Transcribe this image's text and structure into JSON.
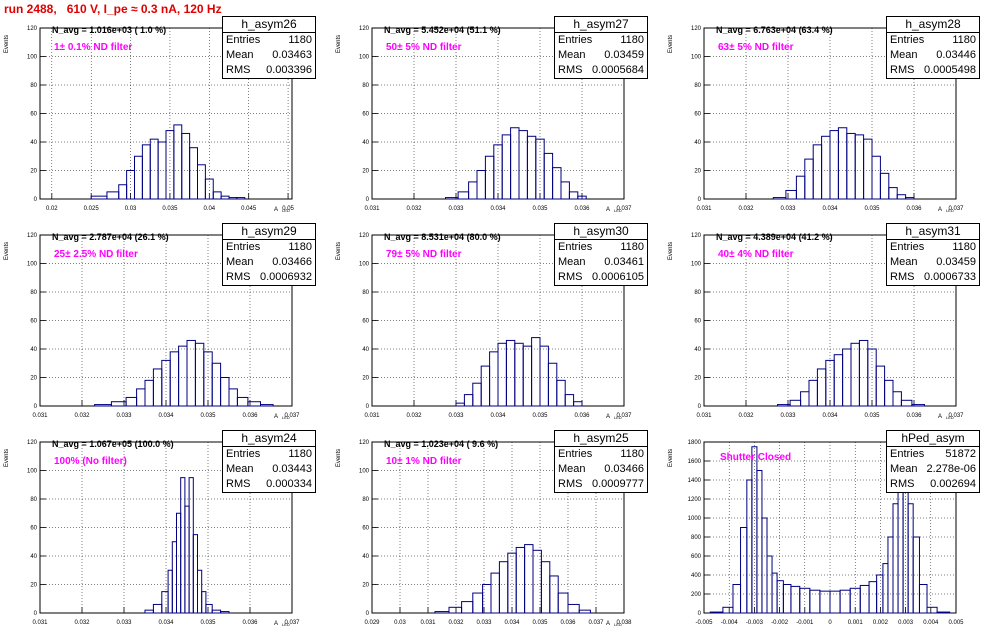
{
  "title": "run 2488,   610 V, I_pe ≈ 0.3 nA, 120 Hz",
  "ylabel": "Events",
  "xlabel": "A",
  "xlabel_sub": "LED",
  "stat_labels": {
    "entries": "Entries",
    "mean": "Mean",
    "rms": "RMS"
  },
  "colors": {
    "hist": "#000080",
    "title": "#e00000",
    "filter": "#ff00ff"
  },
  "panels": [
    {
      "name": "h_asym26",
      "entries": "1180",
      "mean": "0.03463",
      "rms": "0.003396",
      "navg": "N_avg = 1.016e+03 ( 1.0 %)",
      "filter": "1± 0.1% ND filter"
    },
    {
      "name": "h_asym27",
      "entries": "1180",
      "mean": "0.03459",
      "rms": "0.0005684",
      "navg": "N_avg = 5.452e+04 (51.1 %)",
      "filter": "50± 5% ND filter"
    },
    {
      "name": "h_asym28",
      "entries": "1180",
      "mean": "0.03446",
      "rms": "0.0005498",
      "navg": "N_avg = 6.763e+04 (63.4 %)",
      "filter": "63± 5% ND filter"
    },
    {
      "name": "h_asym29",
      "entries": "1180",
      "mean": "0.03466",
      "rms": "0.0006932",
      "navg": "N_avg = 2.787e+04 (26.1 %)",
      "filter": "25± 2.5% ND filter"
    },
    {
      "name": "h_asym30",
      "entries": "1180",
      "mean": "0.03461",
      "rms": "0.0006105",
      "navg": "N_avg = 8.531e+04 (80.0 %)",
      "filter": "79± 5% ND filter"
    },
    {
      "name": "h_asym31",
      "entries": "1180",
      "mean": "0.03459",
      "rms": "0.0006733",
      "navg": "N_avg = 4.389e+04 (41.2 %)",
      "filter": "40± 4% ND filter"
    },
    {
      "name": "h_asym24",
      "entries": "1180",
      "mean": "0.03443",
      "rms": "0.000334",
      "navg": "N_avg = 1.067e+05 (100.0 %)",
      "filter": "100% (No filter)"
    },
    {
      "name": "h_asym25",
      "entries": "1180",
      "mean": "0.03466",
      "rms": "0.0009777",
      "navg": "N_avg = 1.023e+04 ( 9.6 %)",
      "filter": "10± 1% ND filter"
    },
    {
      "name": "hPed_asym",
      "entries": "51872",
      "mean": "2.278e-06",
      "rms": "0.002694",
      "navg": "",
      "filter": "Shutter Closed"
    }
  ],
  "chart_data": [
    {
      "type": "bar",
      "name": "h_asym26",
      "xlim": [
        0.0185,
        0.0505
      ],
      "ylim": [
        0,
        120
      ],
      "xticks": [
        0.02,
        0.025,
        0.03,
        0.035,
        0.04,
        0.045,
        0.05
      ],
      "yticks": [
        0,
        20,
        40,
        60,
        80,
        100,
        120
      ],
      "xlabel": "A LED",
      "ylabel": "Events",
      "x": [
        0.026,
        0.028,
        0.029,
        0.03,
        0.031,
        0.032,
        0.033,
        0.034,
        0.035,
        0.036,
        0.037,
        0.038,
        0.039,
        0.04,
        0.041,
        0.042,
        0.043,
        0.044
      ],
      "values": [
        2,
        5,
        10,
        20,
        30,
        38,
        42,
        40,
        48,
        52,
        46,
        36,
        24,
        14,
        5,
        2,
        1,
        1
      ]
    },
    {
      "type": "bar",
      "name": "h_asym27",
      "xlim": [
        0.031,
        0.037
      ],
      "ylim": [
        0,
        120
      ],
      "xticks": [
        0.031,
        0.032,
        0.033,
        0.034,
        0.035,
        0.036,
        0.037
      ],
      "yticks": [
        0,
        20,
        40,
        60,
        80,
        100,
        120
      ],
      "xlabel": "A LED",
      "ylabel": "Events",
      "x": [
        0.0329,
        0.0332,
        0.0334,
        0.0336,
        0.0338,
        0.034,
        0.0342,
        0.0344,
        0.0346,
        0.0348,
        0.035,
        0.0352,
        0.0354,
        0.0356,
        0.0358,
        0.036
      ],
      "values": [
        1,
        5,
        12,
        20,
        30,
        38,
        45,
        50,
        48,
        44,
        42,
        32,
        22,
        12,
        5,
        2
      ]
    },
    {
      "type": "bar",
      "name": "h_asym28",
      "xlim": [
        0.031,
        0.037
      ],
      "ylim": [
        0,
        120
      ],
      "xticks": [
        0.031,
        0.032,
        0.033,
        0.034,
        0.035,
        0.036,
        0.037
      ],
      "yticks": [
        0,
        20,
        40,
        60,
        80,
        100,
        120
      ],
      "xlabel": "A LED",
      "ylabel": "Events",
      "x": [
        0.0328,
        0.0331,
        0.0333,
        0.0335,
        0.0337,
        0.0339,
        0.0341,
        0.0343,
        0.0345,
        0.0347,
        0.0349,
        0.0351,
        0.0353,
        0.0355,
        0.0357,
        0.0359
      ],
      "values": [
        1,
        6,
        16,
        28,
        38,
        44,
        48,
        50,
        46,
        45,
        42,
        30,
        18,
        8,
        3,
        1
      ]
    },
    {
      "type": "bar",
      "name": "h_asym29",
      "xlim": [
        0.031,
        0.037
      ],
      "ylim": [
        0,
        120
      ],
      "xticks": [
        0.031,
        0.032,
        0.033,
        0.034,
        0.035,
        0.036,
        0.037
      ],
      "yticks": [
        0,
        20,
        40,
        60,
        80,
        100,
        120
      ],
      "xlabel": "A LED",
      "ylabel": "Events",
      "x": [
        0.0325,
        0.0329,
        0.0332,
        0.0334,
        0.0336,
        0.0338,
        0.034,
        0.0342,
        0.0344,
        0.0346,
        0.0348,
        0.035,
        0.0352,
        0.0354,
        0.0356,
        0.0358,
        0.0361,
        0.0364
      ],
      "values": [
        1,
        3,
        6,
        12,
        18,
        26,
        32,
        38,
        42,
        46,
        44,
        38,
        30,
        20,
        12,
        6,
        3,
        1
      ]
    },
    {
      "type": "bar",
      "name": "h_asym30",
      "xlim": [
        0.031,
        0.037
      ],
      "ylim": [
        0,
        120
      ],
      "xticks": [
        0.031,
        0.032,
        0.033,
        0.034,
        0.035,
        0.036,
        0.037
      ],
      "yticks": [
        0,
        20,
        40,
        60,
        80,
        100,
        120
      ],
      "xlabel": "A LED",
      "ylabel": "Events",
      "x": [
        0.0331,
        0.0333,
        0.0335,
        0.0337,
        0.0339,
        0.0341,
        0.0343,
        0.0345,
        0.0347,
        0.0349,
        0.0351,
        0.0353,
        0.0355,
        0.0357,
        0.0359
      ],
      "values": [
        2,
        8,
        16,
        28,
        38,
        44,
        46,
        44,
        42,
        48,
        42,
        30,
        18,
        8,
        3
      ]
    },
    {
      "type": "bar",
      "name": "h_asym31",
      "xlim": [
        0.031,
        0.037
      ],
      "ylim": [
        0,
        120
      ],
      "xticks": [
        0.031,
        0.032,
        0.033,
        0.034,
        0.035,
        0.036,
        0.037
      ],
      "yticks": [
        0,
        20,
        40,
        60,
        80,
        100,
        120
      ],
      "xlabel": "A LED",
      "ylabel": "Events",
      "x": [
        0.0329,
        0.0332,
        0.0334,
        0.0336,
        0.0338,
        0.034,
        0.0342,
        0.0344,
        0.0346,
        0.0348,
        0.035,
        0.0352,
        0.0354,
        0.0356,
        0.0358,
        0.0361
      ],
      "values": [
        1,
        4,
        10,
        18,
        26,
        32,
        36,
        40,
        44,
        46,
        40,
        28,
        18,
        10,
        4,
        1
      ]
    },
    {
      "type": "bar",
      "name": "h_asym24",
      "xlim": [
        0.031,
        0.037
      ],
      "ylim": [
        0,
        120
      ],
      "xticks": [
        0.031,
        0.032,
        0.033,
        0.034,
        0.035,
        0.036,
        0.037
      ],
      "yticks": [
        0,
        20,
        40,
        60,
        80,
        100,
        120
      ],
      "xlabel": "A LED",
      "ylabel": "Events",
      "x": [
        0.0336,
        0.0338,
        0.034,
        0.0341,
        0.0342,
        0.0343,
        0.0344,
        0.0345,
        0.0346,
        0.0347,
        0.0348,
        0.0349,
        0.035,
        0.0352,
        0.0354
      ],
      "values": [
        2,
        6,
        15,
        30,
        50,
        70,
        95,
        75,
        95,
        55,
        30,
        15,
        6,
        2,
        1
      ]
    },
    {
      "type": "bar",
      "name": "h_asym25",
      "xlim": [
        0.029,
        0.038
      ],
      "ylim": [
        0,
        120
      ],
      "xticks": [
        0.029,
        0.03,
        0.031,
        0.032,
        0.033,
        0.034,
        0.035,
        0.036,
        0.037,
        0.038
      ],
      "yticks": [
        0,
        20,
        40,
        60,
        80,
        100,
        120
      ],
      "xlabel": "A LED",
      "ylabel": "Events",
      "x": [
        0.0315,
        0.032,
        0.0324,
        0.0328,
        0.0331,
        0.0334,
        0.0337,
        0.034,
        0.0343,
        0.0346,
        0.0349,
        0.0352,
        0.0355,
        0.0358,
        0.0362,
        0.0366
      ],
      "values": [
        1,
        4,
        8,
        14,
        20,
        28,
        36,
        42,
        46,
        48,
        44,
        36,
        26,
        14,
        6,
        2
      ]
    },
    {
      "type": "bar",
      "name": "hPed_asym",
      "xlim": [
        -0.005,
        0.005
      ],
      "ylim": [
        0,
        1800
      ],
      "xticks": [
        -0.005,
        -0.004,
        -0.003,
        -0.002,
        -0.001,
        0,
        0.001,
        0.002,
        0.003,
        0.004,
        0.005
      ],
      "yticks": [
        0,
        200,
        400,
        600,
        800,
        1000,
        1200,
        1400,
        1600,
        1800
      ],
      "xlabel": "",
      "ylabel": "Events",
      "x": [
        -0.0045,
        -0.004,
        -0.0037,
        -0.0034,
        -0.0032,
        -0.003,
        -0.0028,
        -0.0026,
        -0.0024,
        -0.0022,
        -0.002,
        -0.0017,
        -0.0014,
        -0.001,
        -0.0006,
        -0.0002,
        0.0002,
        0.0006,
        0.001,
        0.0014,
        0.0017,
        0.002,
        0.0022,
        0.0024,
        0.0026,
        0.0028,
        0.003,
        0.0032,
        0.0034,
        0.0037,
        0.004,
        0.0045
      ],
      "values": [
        10,
        60,
        300,
        900,
        1400,
        1750,
        1500,
        1000,
        600,
        420,
        340,
        300,
        280,
        260,
        240,
        230,
        230,
        240,
        260,
        290,
        330,
        400,
        520,
        800,
        1150,
        1400,
        1300,
        1150,
        800,
        300,
        60,
        10
      ]
    }
  ]
}
